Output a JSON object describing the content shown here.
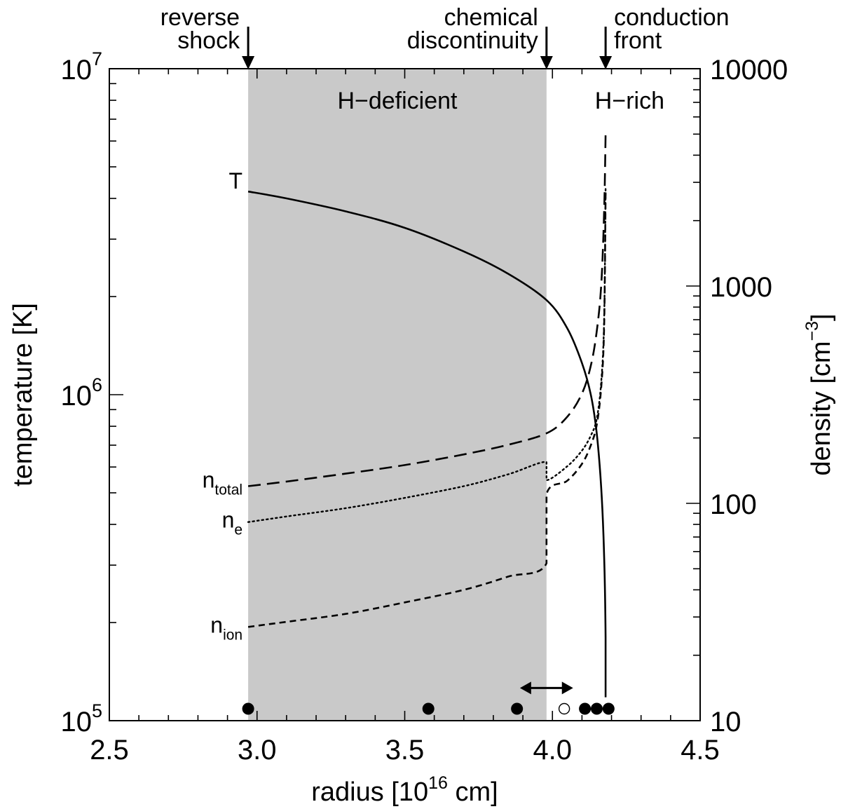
{
  "chart_data": {
    "type": "line",
    "title": "",
    "xlabel": "radius [10",
    "xlabel_exp": "16",
    "xlabel_unit": " cm]",
    "xlim": [
      2.5,
      4.5
    ],
    "x_ticks": [
      "2.5",
      "3.0",
      "3.5",
      "4.0",
      "4.5"
    ],
    "y_left": {
      "label": "temperature [K]",
      "scale": "log",
      "lim": [
        100000,
        10000000
      ],
      "tick_labels": [
        {
          "value": 100000,
          "base": "10",
          "exp": "5"
        },
        {
          "value": 1000000,
          "base": "10",
          "exp": "6"
        },
        {
          "value": 10000000,
          "base": "10",
          "exp": "7"
        }
      ]
    },
    "y_right": {
      "label": "density [cm",
      "label_exp": "−3",
      "label_end": "]",
      "scale": "log",
      "lim": [
        10,
        10000
      ],
      "tick_labels": [
        {
          "value": 10,
          "text": "10"
        },
        {
          "value": 100,
          "text": "100"
        },
        {
          "value": 1000,
          "text": "1000"
        },
        {
          "value": 10000,
          "text": "10000"
        }
      ]
    },
    "regions": [
      {
        "label": "H−deficient",
        "x": [
          2.97,
          3.98
        ],
        "color": "#c9c9c9"
      },
      {
        "label": "H−rich",
        "x": [
          3.98,
          4.5
        ],
        "color": "#ffffff"
      }
    ],
    "markers": [
      {
        "label": "reverse shock",
        "lines": [
          "reverse",
          "shock"
        ],
        "x": 2.97
      },
      {
        "label": "chemical discontinuity",
        "lines": [
          "chemical",
          "discontinuity"
        ],
        "x": 3.98
      },
      {
        "label": "conduction front",
        "lines": [
          "conduction",
          "front"
        ],
        "x": 4.18
      }
    ],
    "series": [
      {
        "name": "T",
        "axis": "left",
        "style": "solid",
        "label_main": "T",
        "label_sub": "",
        "x": [
          2.97,
          3.1,
          3.3,
          3.5,
          3.7,
          3.85,
          3.98,
          4.05,
          4.1,
          4.13,
          4.15,
          4.165,
          4.175,
          4.18,
          4.18
        ],
        "y": [
          4200000,
          4000000,
          3650000,
          3250000,
          2750000,
          2350000,
          1950000,
          1600000,
          1250000,
          1000000,
          760000,
          520000,
          320000,
          180000,
          118000
        ]
      },
      {
        "name": "n_total",
        "axis": "right",
        "style": "longdash",
        "label_main": "n",
        "label_sub": "total",
        "x": [
          2.97,
          3.1,
          3.3,
          3.5,
          3.7,
          3.85,
          3.98,
          4.05,
          4.1,
          4.13,
          4.15,
          4.165,
          4.175,
          4.18
        ],
        "y": [
          120,
          126,
          137,
          150,
          168,
          186,
          210,
          250,
          320,
          430,
          620,
          1000,
          2200,
          5000
        ]
      },
      {
        "name": "n_e",
        "axis": "right",
        "style": "dotted",
        "label_main": "n",
        "label_sub": "e",
        "x": [
          2.97,
          3.1,
          3.3,
          3.5,
          3.7,
          3.85,
          3.98,
          3.98,
          4.05,
          4.1,
          4.13,
          4.15,
          4.165,
          4.175,
          4.18
        ],
        "y": [
          82,
          87,
          95,
          106,
          120,
          136,
          155,
          128,
          148,
          175,
          205,
          245,
          360,
          700,
          2800
        ]
      },
      {
        "name": "n_ion",
        "axis": "right",
        "style": "dashed",
        "label_main": "n",
        "label_sub": "ion",
        "x": [
          2.97,
          3.1,
          3.3,
          3.5,
          3.7,
          3.85,
          3.98,
          3.98,
          4.05,
          4.1,
          4.13,
          4.15,
          4.165,
          4.175,
          4.18
        ],
        "y": [
          27,
          28.5,
          31,
          35,
          40,
          46,
          53,
          110,
          127,
          152,
          185,
          230,
          340,
          650,
          2700
        ]
      }
    ],
    "points": [
      {
        "x": 2.97,
        "filled": true
      },
      {
        "x": 3.58,
        "filled": true
      },
      {
        "x": 3.88,
        "filled": true
      },
      {
        "x": 4.04,
        "filled": false
      },
      {
        "x": 4.11,
        "filled": true
      },
      {
        "x": 4.15,
        "filled": true
      },
      {
        "x": 4.19,
        "filled": true
      }
    ],
    "range_arrow": {
      "x": [
        3.89,
        4.07
      ],
      "temperature": 126000
    }
  }
}
